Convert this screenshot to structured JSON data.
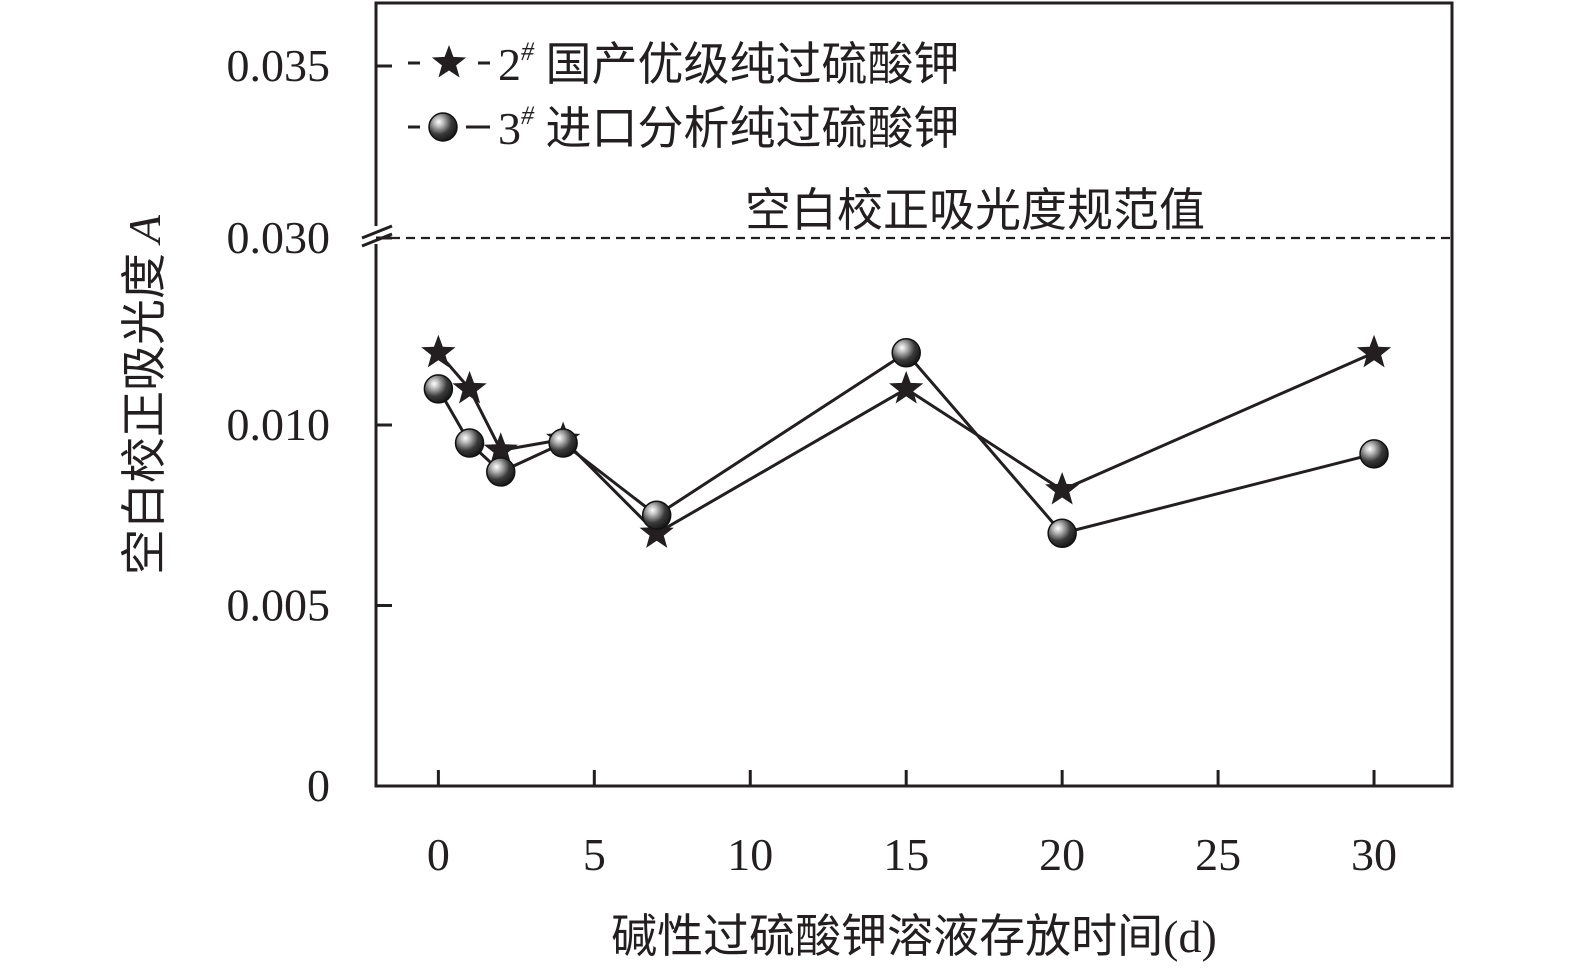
{
  "chart_data": {
    "type": "line",
    "title": "",
    "xlabel": "碱性过硫酸钾溶液存放时间(d)",
    "ylabel": "空白校正吸光度",
    "ylabel_italic": "A",
    "x_ticks": [
      0,
      5,
      10,
      15,
      20,
      25,
      30
    ],
    "x_tick_labels": [
      "0",
      "5",
      "10",
      "15",
      "20",
      "25",
      "30"
    ],
    "xlim": [
      -2,
      32.5
    ],
    "y_ticks_lower": [
      0,
      0.005,
      0.01
    ],
    "y_tick_labels_lower": [
      "0",
      "0.005",
      "0.010"
    ],
    "y_ticks_upper": [
      0.03,
      0.035
    ],
    "y_tick_labels_upper": [
      "0.030",
      "0.035"
    ],
    "y_axis_break": true,
    "grid": false,
    "legend_position": "top-left",
    "reference_line": {
      "label": "空白校正吸光度规范值",
      "value": 0.03
    },
    "series": [
      {
        "name_main": "2",
        "name_sup": "#",
        "name_rest": " 国产优级纯过硫酸钾",
        "marker": "star",
        "x": [
          0,
          1,
          2,
          4,
          7,
          15,
          20,
          30
        ],
        "values": [
          0.012,
          0.011,
          0.0093,
          0.0096,
          0.007,
          0.011,
          0.0082,
          0.012
        ]
      },
      {
        "name_main": "3",
        "name_sup": "#",
        "name_rest": " 进口分析纯过硫酸钾",
        "marker": "circle",
        "x": [
          0,
          1,
          2,
          4,
          7,
          15,
          20,
          30
        ],
        "values": [
          0.011,
          0.0095,
          0.0087,
          0.0095,
          0.0075,
          0.012,
          0.007,
          0.0092
        ]
      }
    ],
    "colors": {
      "ink": "#231f20",
      "background": "#ffffff"
    }
  }
}
